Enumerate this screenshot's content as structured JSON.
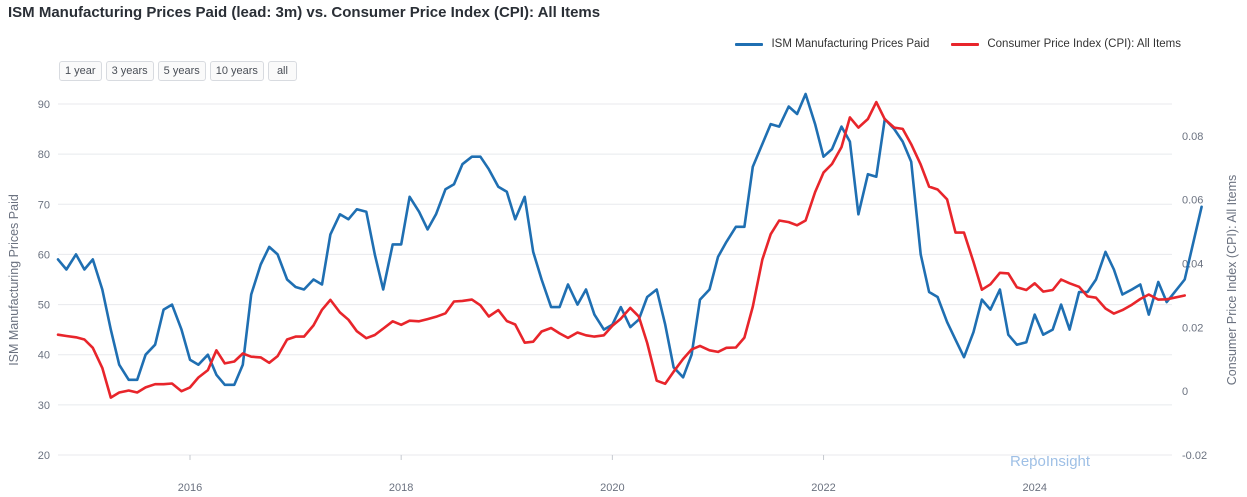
{
  "chart_data": {
    "type": "line",
    "title": "ISM Manufacturing Prices Paid (lead: 3m) vs. Consumer Price Index (CPI): All Items",
    "x_range": [
      2014.75,
      2025.3
    ],
    "x_ticks": [
      2016,
      2018,
      2020,
      2022,
      2024
    ],
    "y_left": {
      "label": "ISM Manufacturing Prices Paid",
      "range": [
        20,
        90
      ],
      "ticks": [
        20,
        30,
        40,
        50,
        60,
        70,
        80,
        90
      ]
    },
    "y_right": {
      "label": "Consumer Price Index (CPI): All Items",
      "range": [
        -0.02,
        0.09
      ],
      "ticks": [
        -0.02,
        0,
        0.02,
        0.04,
        0.06,
        0.08
      ]
    },
    "series": [
      {
        "name": "ISM Manufacturing Prices Paid",
        "axis": "left",
        "color": "#1f6fb2",
        "points": [
          [
            2014.75,
            59
          ],
          [
            2014.83,
            57
          ],
          [
            2014.92,
            60
          ],
          [
            2015.0,
            57
          ],
          [
            2015.08,
            59
          ],
          [
            2015.17,
            53
          ],
          [
            2015.25,
            45
          ],
          [
            2015.33,
            38
          ],
          [
            2015.42,
            35
          ],
          [
            2015.5,
            35
          ],
          [
            2015.58,
            40
          ],
          [
            2015.67,
            42
          ],
          [
            2015.75,
            49
          ],
          [
            2015.83,
            50
          ],
          [
            2015.92,
            45
          ],
          [
            2016.0,
            39
          ],
          [
            2016.08,
            38
          ],
          [
            2016.17,
            40
          ],
          [
            2016.25,
            36
          ],
          [
            2016.33,
            34
          ],
          [
            2016.42,
            34
          ],
          [
            2016.5,
            38
          ],
          [
            2016.58,
            52
          ],
          [
            2016.67,
            58
          ],
          [
            2016.75,
            61.5
          ],
          [
            2016.83,
            60
          ],
          [
            2016.92,
            55
          ],
          [
            2017.0,
            53.5
          ],
          [
            2017.08,
            53
          ],
          [
            2017.17,
            55
          ],
          [
            2017.25,
            54
          ],
          [
            2017.33,
            64
          ],
          [
            2017.42,
            68
          ],
          [
            2017.5,
            67
          ],
          [
            2017.58,
            69
          ],
          [
            2017.67,
            68.5
          ],
          [
            2017.75,
            60
          ],
          [
            2017.83,
            53
          ],
          [
            2017.92,
            62
          ],
          [
            2018.0,
            62
          ],
          [
            2018.08,
            71.5
          ],
          [
            2018.17,
            68.5
          ],
          [
            2018.25,
            65
          ],
          [
            2018.33,
            68
          ],
          [
            2018.42,
            73
          ],
          [
            2018.5,
            74
          ],
          [
            2018.58,
            78
          ],
          [
            2018.67,
            79.5
          ],
          [
            2018.75,
            79.5
          ],
          [
            2018.83,
            77
          ],
          [
            2018.92,
            73.5
          ],
          [
            2019.0,
            72.5
          ],
          [
            2019.08,
            67
          ],
          [
            2019.17,
            71.5
          ],
          [
            2019.25,
            60.5
          ],
          [
            2019.33,
            55
          ],
          [
            2019.42,
            49.5
          ],
          [
            2019.5,
            49.5
          ],
          [
            2019.58,
            54
          ],
          [
            2019.67,
            50
          ],
          [
            2019.75,
            53
          ],
          [
            2019.83,
            48
          ],
          [
            2019.92,
            45
          ],
          [
            2020.0,
            46
          ],
          [
            2020.08,
            49.5
          ],
          [
            2020.17,
            45.5
          ],
          [
            2020.25,
            47
          ],
          [
            2020.33,
            51.5
          ],
          [
            2020.42,
            53
          ],
          [
            2020.5,
            46
          ],
          [
            2020.58,
            37.5
          ],
          [
            2020.67,
            35.5
          ],
          [
            2020.75,
            40
          ],
          [
            2020.83,
            51
          ],
          [
            2020.92,
            53
          ],
          [
            2021.0,
            59.5
          ],
          [
            2021.08,
            62.5
          ],
          [
            2021.17,
            65.5
          ],
          [
            2021.25,
            65.5
          ],
          [
            2021.33,
            77.5
          ],
          [
            2021.42,
            82
          ],
          [
            2021.5,
            86
          ],
          [
            2021.58,
            85.5
          ],
          [
            2021.67,
            89.5
          ],
          [
            2021.75,
            88
          ],
          [
            2021.83,
            92
          ],
          [
            2021.92,
            86
          ],
          [
            2022.0,
            79.5
          ],
          [
            2022.08,
            81
          ],
          [
            2022.17,
            85.5
          ],
          [
            2022.25,
            82.5
          ],
          [
            2022.33,
            68
          ],
          [
            2022.42,
            76
          ],
          [
            2022.5,
            75.5
          ],
          [
            2022.58,
            87
          ],
          [
            2022.67,
            85
          ],
          [
            2022.75,
            82.5
          ],
          [
            2022.83,
            78.5
          ],
          [
            2022.92,
            60
          ],
          [
            2023.0,
            52.5
          ],
          [
            2023.08,
            51.5
          ],
          [
            2023.17,
            46.5
          ],
          [
            2023.25,
            43
          ],
          [
            2023.33,
            39.5
          ],
          [
            2023.42,
            44.5
          ],
          [
            2023.5,
            51
          ],
          [
            2023.58,
            49
          ],
          [
            2023.67,
            53
          ],
          [
            2023.75,
            44
          ],
          [
            2023.83,
            42
          ],
          [
            2023.92,
            42.5
          ],
          [
            2024.0,
            48
          ],
          [
            2024.08,
            44
          ],
          [
            2024.17,
            45
          ],
          [
            2024.25,
            50
          ],
          [
            2024.33,
            45
          ],
          [
            2024.42,
            52.5
          ],
          [
            2024.5,
            52.5
          ],
          [
            2024.58,
            55
          ],
          [
            2024.67,
            60.5
          ],
          [
            2024.75,
            57
          ],
          [
            2024.83,
            52
          ],
          [
            2024.92,
            53
          ],
          [
            2025.0,
            54
          ],
          [
            2025.08,
            48
          ],
          [
            2025.17,
            54.5
          ],
          [
            2025.25,
            50.5
          ],
          [
            2025.42,
            55
          ],
          [
            2025.58,
            69.5
          ]
        ]
      },
      {
        "name": "Consumer Price Index (CPI): All Items",
        "axis": "right",
        "color": "#e8252b",
        "points": [
          [
            2014.75,
            0.0177
          ],
          [
            2014.83,
            0.0173
          ],
          [
            2014.92,
            0.0169
          ],
          [
            2015.0,
            0.0162
          ],
          [
            2015.08,
            0.0136
          ],
          [
            2015.17,
            0.0073
          ],
          [
            2015.25,
            -0.002
          ],
          [
            2015.33,
            -0.0004
          ],
          [
            2015.42,
            0.0002
          ],
          [
            2015.5,
            -0.0004
          ],
          [
            2015.58,
            0.0012
          ],
          [
            2015.67,
            0.0022
          ],
          [
            2015.75,
            0.0022
          ],
          [
            2015.83,
            0.0024
          ],
          [
            2015.92,
            0
          ],
          [
            2016.0,
            0.0012
          ],
          [
            2016.08,
            0.0043
          ],
          [
            2016.17,
            0.0066
          ],
          [
            2016.25,
            0.0128
          ],
          [
            2016.33,
            0.0087
          ],
          [
            2016.42,
            0.0093
          ],
          [
            2016.5,
            0.0118
          ],
          [
            2016.58,
            0.0108
          ],
          [
            2016.67,
            0.0106
          ],
          [
            2016.75,
            0.0089
          ],
          [
            2016.83,
            0.011
          ],
          [
            2016.92,
            0.0162
          ],
          [
            2017.0,
            0.0171
          ],
          [
            2017.08,
            0.0171
          ],
          [
            2017.17,
            0.0206
          ],
          [
            2017.25,
            0.0255
          ],
          [
            2017.33,
            0.0286
          ],
          [
            2017.42,
            0.0247
          ],
          [
            2017.5,
            0.0224
          ],
          [
            2017.58,
            0.0188
          ],
          [
            2017.67,
            0.0166
          ],
          [
            2017.75,
            0.0176
          ],
          [
            2017.83,
            0.0196
          ],
          [
            2017.92,
            0.0219
          ],
          [
            2018.0,
            0.0208
          ],
          [
            2018.08,
            0.0221
          ],
          [
            2018.17,
            0.0219
          ],
          [
            2018.25,
            0.0226
          ],
          [
            2018.33,
            0.0233
          ],
          [
            2018.42,
            0.0244
          ],
          [
            2018.5,
            0.0281
          ],
          [
            2018.58,
            0.0283
          ],
          [
            2018.67,
            0.0287
          ],
          [
            2018.75,
            0.0269
          ],
          [
            2018.83,
            0.0234
          ],
          [
            2018.92,
            0.0254
          ],
          [
            2019.0,
            0.022
          ],
          [
            2019.08,
            0.0209
          ],
          [
            2019.17,
            0.0152
          ],
          [
            2019.25,
            0.0155
          ],
          [
            2019.33,
            0.0187
          ],
          [
            2019.42,
            0.0198
          ],
          [
            2019.5,
            0.0181
          ],
          [
            2019.58,
            0.0167
          ],
          [
            2019.67,
            0.0184
          ],
          [
            2019.75,
            0.0175
          ],
          [
            2019.83,
            0.0171
          ],
          [
            2019.92,
            0.0175
          ],
          [
            2020.0,
            0.0205
          ],
          [
            2020.08,
            0.0227
          ],
          [
            2020.17,
            0.0261
          ],
          [
            2020.25,
            0.0234
          ],
          [
            2020.33,
            0.0151
          ],
          [
            2020.42,
            0.0033
          ],
          [
            2020.5,
            0.0023
          ],
          [
            2020.58,
            0.0061
          ],
          [
            2020.67,
            0.0101
          ],
          [
            2020.75,
            0.0131
          ],
          [
            2020.83,
            0.0142
          ],
          [
            2020.92,
            0.0128
          ],
          [
            2021.0,
            0.0123
          ],
          [
            2021.08,
            0.0136
          ],
          [
            2021.17,
            0.0137
          ],
          [
            2021.25,
            0.0168
          ],
          [
            2021.33,
            0.0265
          ],
          [
            2021.42,
            0.0412
          ],
          [
            2021.5,
            0.0492
          ],
          [
            2021.58,
            0.0535
          ],
          [
            2021.67,
            0.053
          ],
          [
            2021.75,
            0.052
          ],
          [
            2021.83,
            0.0535
          ],
          [
            2021.92,
            0.0624
          ],
          [
            2022.0,
            0.0685
          ],
          [
            2022.08,
            0.0712
          ],
          [
            2022.17,
            0.0765
          ],
          [
            2022.25,
            0.0858
          ],
          [
            2022.33,
            0.0826
          ],
          [
            2022.42,
            0.0853
          ],
          [
            2022.5,
            0.0906
          ],
          [
            2022.58,
            0.0852
          ],
          [
            2022.67,
            0.0826
          ],
          [
            2022.75,
            0.0822
          ],
          [
            2022.83,
            0.0774
          ],
          [
            2022.92,
            0.071
          ],
          [
            2023.0,
            0.0641
          ],
          [
            2023.08,
            0.0632
          ],
          [
            2023.17,
            0.0601
          ],
          [
            2023.25,
            0.0497
          ],
          [
            2023.33,
            0.0497
          ],
          [
            2023.42,
            0.0405
          ],
          [
            2023.5,
            0.0318
          ],
          [
            2023.58,
            0.0335
          ],
          [
            2023.67,
            0.0371
          ],
          [
            2023.75,
            0.0369
          ],
          [
            2023.83,
            0.0326
          ],
          [
            2023.92,
            0.0317
          ],
          [
            2024.0,
            0.0338
          ],
          [
            2024.08,
            0.0312
          ],
          [
            2024.17,
            0.0317
          ],
          [
            2024.25,
            0.035
          ],
          [
            2024.33,
            0.0338
          ],
          [
            2024.42,
            0.0327
          ],
          [
            2024.5,
            0.0297
          ],
          [
            2024.58,
            0.0293
          ],
          [
            2024.67,
            0.0259
          ],
          [
            2024.75,
            0.0243
          ],
          [
            2024.83,
            0.0254
          ],
          [
            2024.92,
            0.0271
          ],
          [
            2025.0,
            0.0289
          ],
          [
            2025.08,
            0.0303
          ],
          [
            2025.17,
            0.0287
          ],
          [
            2025.25,
            0.0288
          ],
          [
            2025.42,
            0.03
          ]
        ]
      }
    ]
  },
  "range_buttons": [
    "1 year",
    "3 years",
    "5 years",
    "10 years",
    "all"
  ],
  "watermark": "RepoInsight"
}
